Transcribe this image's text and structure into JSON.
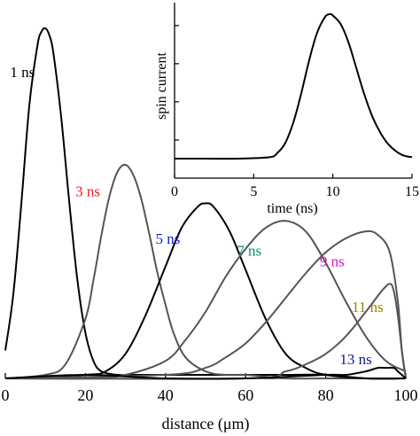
{
  "chart_data": [
    {
      "type": "line",
      "title": "",
      "xlabel": "distance (μm)",
      "ylabel": "",
      "xlim": [
        0,
        100
      ],
      "ylim": [
        0,
        1.02
      ],
      "xticks": [
        0,
        20,
        40,
        60,
        80,
        100
      ],
      "yticks": [],
      "grid": false,
      "series": [
        {
          "name": "1 ns",
          "label_color": "#000000",
          "line_color": "#000000",
          "x": [
            0,
            2,
            4,
            6,
            8,
            9,
            10,
            11,
            12,
            14,
            16,
            18,
            20,
            22,
            24,
            28,
            32,
            40,
            50,
            60,
            70,
            80,
            90,
            100
          ],
          "y": [
            0.08,
            0.24,
            0.5,
            0.78,
            0.95,
            0.99,
            1.0,
            0.98,
            0.93,
            0.74,
            0.5,
            0.28,
            0.13,
            0.05,
            0.02,
            0.01,
            0.01,
            0.01,
            0.01,
            0.01,
            0.01,
            0.01,
            0.0,
            0.0
          ]
        },
        {
          "name": "3 ns",
          "label_color": "#e8191c",
          "line_color": "#555555",
          "x": [
            0,
            10,
            15,
            20,
            22,
            24,
            26,
            28,
            30,
            32,
            34,
            36,
            38,
            40,
            42,
            45,
            50,
            55,
            60,
            70,
            80,
            90,
            100
          ],
          "y": [
            0.0,
            0.01,
            0.04,
            0.17,
            0.28,
            0.41,
            0.52,
            0.59,
            0.61,
            0.58,
            0.51,
            0.41,
            0.3,
            0.21,
            0.13,
            0.06,
            0.02,
            0.01,
            0.01,
            0.0,
            0.0,
            0.0,
            0.0
          ]
        },
        {
          "name": "5 ns",
          "label_color": "#1a1ad8",
          "line_color": "#000000",
          "x": [
            0,
            20,
            25,
            30,
            35,
            40,
            44,
            48,
            50,
            52,
            56,
            60,
            65,
            70,
            75,
            80,
            90,
            100
          ],
          "y": [
            0.0,
            0.01,
            0.02,
            0.07,
            0.18,
            0.32,
            0.43,
            0.49,
            0.5,
            0.49,
            0.42,
            0.31,
            0.17,
            0.07,
            0.03,
            0.01,
            0.0,
            0.0
          ]
        },
        {
          "name": "7 ns",
          "label_color": "#0a8a7a",
          "line_color": "#555555",
          "x": [
            0,
            20,
            30,
            40,
            45,
            50,
            55,
            60,
            65,
            70,
            75,
            80,
            85,
            90,
            95,
            100
          ],
          "y": [
            0.0,
            0.0,
            0.01,
            0.05,
            0.11,
            0.19,
            0.29,
            0.37,
            0.43,
            0.45,
            0.42,
            0.33,
            0.22,
            0.12,
            0.05,
            0.02
          ]
        },
        {
          "name": "9 ns",
          "label_color": "#e010d0",
          "line_color": "#555555",
          "x": [
            0,
            40,
            50,
            55,
            60,
            65,
            70,
            75,
            80,
            85,
            90,
            93,
            96,
            98,
            99,
            100
          ],
          "y": [
            0.0,
            0.01,
            0.03,
            0.06,
            0.1,
            0.16,
            0.23,
            0.3,
            0.36,
            0.4,
            0.42,
            0.41,
            0.36,
            0.22,
            0.08,
            0.0
          ]
        },
        {
          "name": "11 ns",
          "label_color": "#8f8a00",
          "line_color": "#555555",
          "x": [
            0,
            60,
            70,
            75,
            80,
            85,
            90,
            94,
            96,
            97,
            98,
            99,
            100
          ],
          "y": [
            0.0,
            0.0,
            0.02,
            0.04,
            0.07,
            0.12,
            0.19,
            0.25,
            0.27,
            0.25,
            0.18,
            0.08,
            0.0
          ]
        },
        {
          "name": "13 ns",
          "label_color": "#0f1a8a",
          "line_color": "#000000",
          "x": [
            0,
            20,
            40,
            60,
            80,
            85,
            90,
            93,
            95,
            97,
            98,
            99,
            100
          ],
          "y": [
            0.0,
            0.01,
            0.0,
            0.0,
            0.01,
            0.01,
            0.02,
            0.03,
            0.03,
            0.03,
            0.02,
            0.01,
            0.0
          ]
        }
      ]
    },
    {
      "type": "line",
      "title": "",
      "xlabel": "time (ns)",
      "ylabel": "spin current",
      "xlim": [
        0,
        15
      ],
      "ylim": [
        0,
        1
      ],
      "xticks": [
        0,
        5,
        10,
        15
      ],
      "yticks": [],
      "grid": false,
      "series": [
        {
          "name": "",
          "x": [
            0,
            2,
            4,
            6,
            6.5,
            7,
            7.5,
            8,
            8.5,
            9,
            9.5,
            9.8,
            10,
            10.5,
            11,
            11.5,
            12,
            12.5,
            13,
            13.5,
            14,
            14.5,
            15
          ],
          "y": [
            0.0,
            0.0,
            0.0,
            0.01,
            0.04,
            0.11,
            0.25,
            0.45,
            0.68,
            0.87,
            0.98,
            1.0,
            0.99,
            0.93,
            0.8,
            0.62,
            0.44,
            0.29,
            0.18,
            0.1,
            0.05,
            0.02,
            0.01
          ]
        }
      ]
    }
  ]
}
